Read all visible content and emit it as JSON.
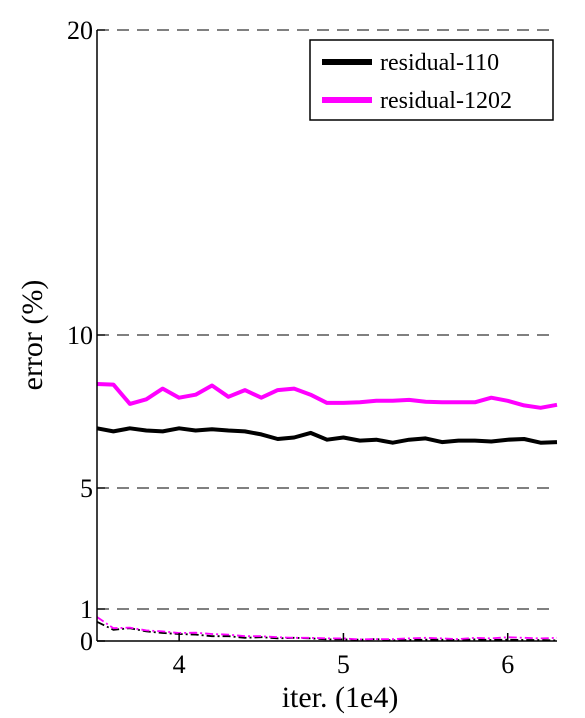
{
  "chart_data": {
    "type": "line",
    "title": "",
    "xlabel": "iter. (1e4)",
    "ylabel": "error (%)",
    "xlim": [
      3.5,
      6.3
    ],
    "ylim": [
      0,
      20
    ],
    "xticks": [
      4,
      5,
      6
    ],
    "xtick_labels": [
      "4",
      "5",
      "6"
    ],
    "yticks": [
      0,
      1,
      5,
      10,
      20
    ],
    "ytick_labels": [
      "0",
      "1",
      "5",
      "10",
      "20"
    ],
    "grid": "horizontal dashed at y ticks",
    "legend": {
      "placement": "top-right",
      "entries": [
        {
          "label": "residual-110",
          "color": "#000000"
        },
        {
          "label": "residual-1202",
          "color": "#ff00ff"
        }
      ]
    },
    "x": [
      3.5,
      3.6,
      3.7,
      3.8,
      3.9,
      4.0,
      4.1,
      4.2,
      4.3,
      4.4,
      4.5,
      4.6,
      4.7,
      4.8,
      4.9,
      5.0,
      5.1,
      5.2,
      5.3,
      5.4,
      5.5,
      5.6,
      5.7,
      5.8,
      5.9,
      6.0,
      6.1,
      6.2,
      6.3
    ],
    "series": [
      {
        "name": "residual-110",
        "color": "#000000",
        "style": "solid",
        "values": [
          6.95,
          6.85,
          6.95,
          6.88,
          6.85,
          6.95,
          6.88,
          6.92,
          6.88,
          6.85,
          6.75,
          6.6,
          6.65,
          6.8,
          6.58,
          6.65,
          6.55,
          6.58,
          6.48,
          6.58,
          6.62,
          6.5,
          6.55,
          6.55,
          6.52,
          6.58,
          6.6,
          6.48,
          6.5
        ]
      },
      {
        "name": "residual-1202",
        "color": "#ff00ff",
        "style": "solid",
        "values": [
          8.4,
          8.38,
          7.75,
          7.9,
          8.25,
          7.95,
          8.05,
          8.35,
          7.98,
          8.2,
          7.95,
          8.2,
          8.25,
          8.05,
          7.78,
          7.78,
          7.8,
          7.85,
          7.85,
          7.88,
          7.82,
          7.8,
          7.8,
          7.8,
          7.95,
          7.85,
          7.7,
          7.62,
          7.72
        ]
      },
      {
        "color": "#000000",
        "style": "dash-dot",
        "values": [
          0.6,
          0.35,
          0.4,
          0.3,
          0.25,
          0.22,
          0.2,
          0.15,
          0.15,
          0.1,
          0.12,
          0.08,
          0.1,
          0.08,
          0.05,
          0.05,
          0.04,
          0.06,
          0.02,
          0.03,
          0.04,
          0.04,
          0.03,
          0.05,
          0.03,
          0.04,
          0.03,
          0.03,
          0.02
        ]
      },
      {
        "color": "#ff00ff",
        "style": "dash-dot",
        "values": [
          0.75,
          0.4,
          0.42,
          0.33,
          0.3,
          0.25,
          0.26,
          0.22,
          0.2,
          0.15,
          0.15,
          0.12,
          0.1,
          0.1,
          0.08,
          0.08,
          0.05,
          0.06,
          0.06,
          0.08,
          0.1,
          0.08,
          0.06,
          0.1,
          0.08,
          0.12,
          0.1,
          0.08,
          0.1
        ]
      }
    ]
  }
}
